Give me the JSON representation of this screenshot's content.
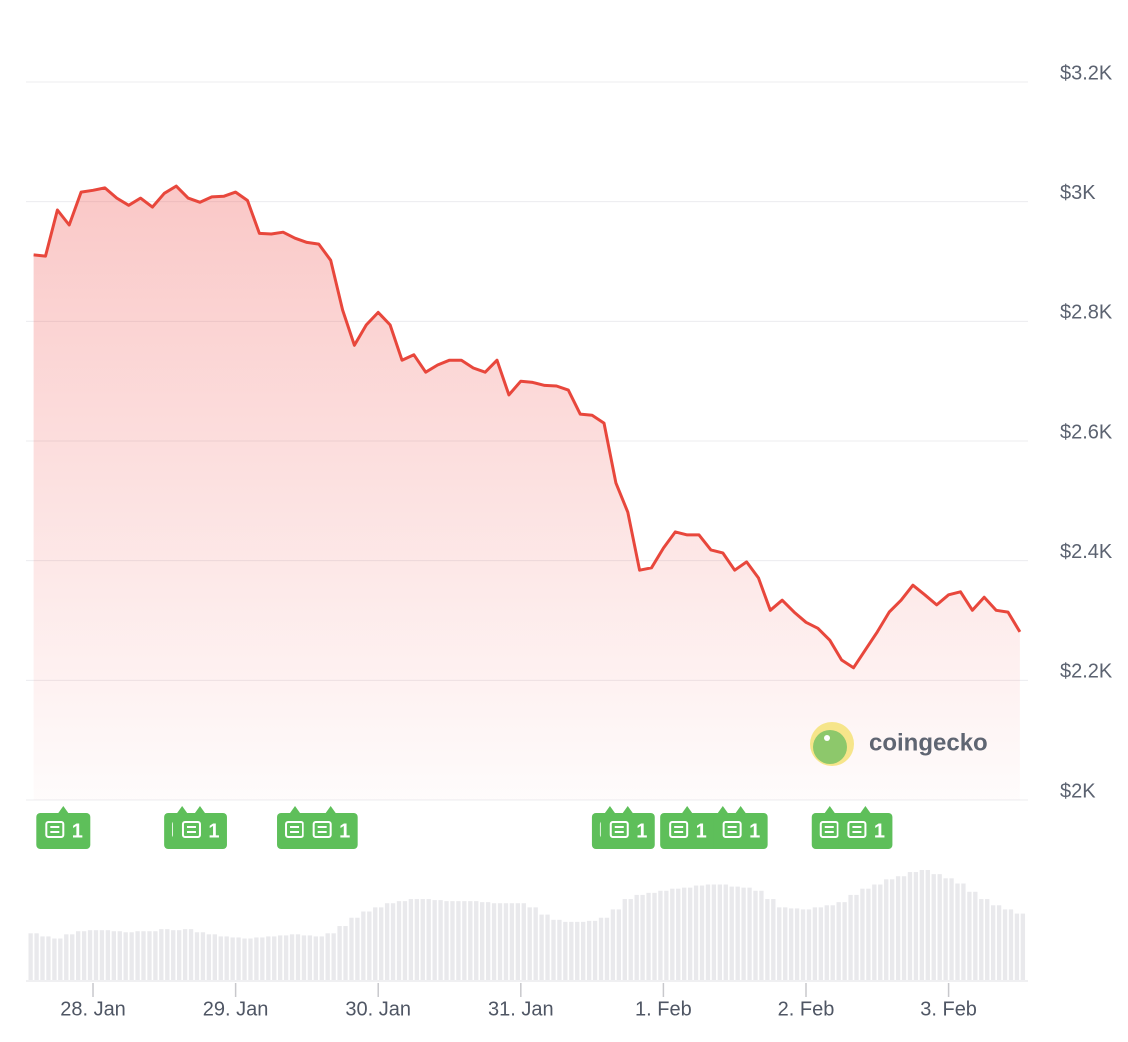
{
  "chart_data": {
    "type": "line",
    "color": "#e8473c",
    "categories": [
      null,
      null,
      null,
      null,
      null,
      "28. Jan",
      null,
      null,
      null,
      null,
      null,
      null,
      null,
      null,
      null,
      null,
      null,
      "29. Jan",
      null,
      null,
      null,
      null,
      null,
      null,
      null,
      null,
      null,
      null,
      null,
      "30. Jan",
      null,
      null,
      null,
      null,
      null,
      null,
      null,
      null,
      null,
      null,
      null,
      "31. Jan",
      null,
      null,
      null,
      null,
      null,
      null,
      null,
      null,
      null,
      null,
      null,
      "1. Feb",
      null,
      null,
      null,
      null,
      null,
      null,
      null,
      null,
      null,
      null,
      null,
      "2. Feb",
      null,
      null,
      null,
      null,
      null,
      null,
      null,
      null,
      null,
      null,
      null,
      "3. Feb",
      null,
      null,
      null,
      null,
      null,
      null
    ],
    "values": [
      2911,
      2909,
      2986,
      2961,
      3016,
      3019,
      3023,
      3006,
      2994,
      3006,
      2991,
      3014,
      3026,
      3006,
      2999,
      3008,
      3009,
      3016,
      3002,
      2947,
      2946,
      2949,
      2939,
      2932,
      2929,
      2902,
      2819,
      2760,
      2794,
      2815,
      2794,
      2735,
      2744,
      2715,
      2727,
      2735,
      2735,
      2722,
      2715,
      2735,
      2677,
      2700,
      2698,
      2693,
      2692,
      2685,
      2645,
      2643,
      2630,
      2530,
      2481,
      2384,
      2388,
      2421,
      2448,
      2443,
      2443,
      2418,
      2413,
      2384,
      2398,
      2371,
      2317,
      2334,
      2314,
      2297,
      2287,
      2267,
      2234,
      2221,
      2251,
      2281,
      2314,
      2334,
      2359,
      2343,
      2326,
      2343,
      2348,
      2317,
      2339,
      2317,
      2314,
      2281
    ],
    "ylim": [
      2000,
      3200
    ],
    "yticks": [
      {
        "value": 2000,
        "label": "$2K"
      },
      {
        "value": 2200,
        "label": "$2.2K"
      },
      {
        "value": 2400,
        "label": "$2.4K"
      },
      {
        "value": 2600,
        "label": "$2.6K"
      },
      {
        "value": 2800,
        "label": "$2.8K"
      },
      {
        "value": 3000,
        "label": "$3K"
      },
      {
        "value": 3200,
        "label": "$3.2K"
      }
    ],
    "grid": true,
    "volume": {
      "color": "#e9e9ec",
      "values": [
        45,
        42,
        40,
        44,
        47,
        48,
        48,
        47,
        46,
        47,
        47,
        49,
        48,
        49,
        46,
        44,
        42,
        41,
        40,
        41,
        42,
        43,
        44,
        43,
        42,
        45,
        52,
        60,
        66,
        70,
        74,
        76,
        78,
        78,
        77,
        76,
        76,
        76,
        75,
        74,
        74,
        74,
        70,
        63,
        58,
        56,
        56,
        57,
        60,
        68,
        78,
        82,
        84,
        86,
        88,
        89,
        91,
        92,
        92,
        90,
        89,
        86,
        78,
        70,
        69,
        68,
        70,
        72,
        75,
        82,
        88,
        92,
        97,
        100,
        104,
        106,
        102,
        98,
        93,
        85,
        78,
        72,
        68,
        64
      ]
    },
    "events": [
      {
        "x": 2.5,
        "label": "1"
      },
      {
        "x": 14,
        "label": "1"
      },
      {
        "x": 25,
        "label": "1"
      },
      {
        "x": 50,
        "label": "1"
      },
      {
        "x": 55,
        "label": "1"
      },
      {
        "x": 59.5,
        "label": "1"
      },
      {
        "x": 70,
        "label": "1"
      }
    ],
    "event_icons": [
      12.5,
      22,
      48.5,
      58,
      67
    ],
    "watermark": "coingecko"
  }
}
